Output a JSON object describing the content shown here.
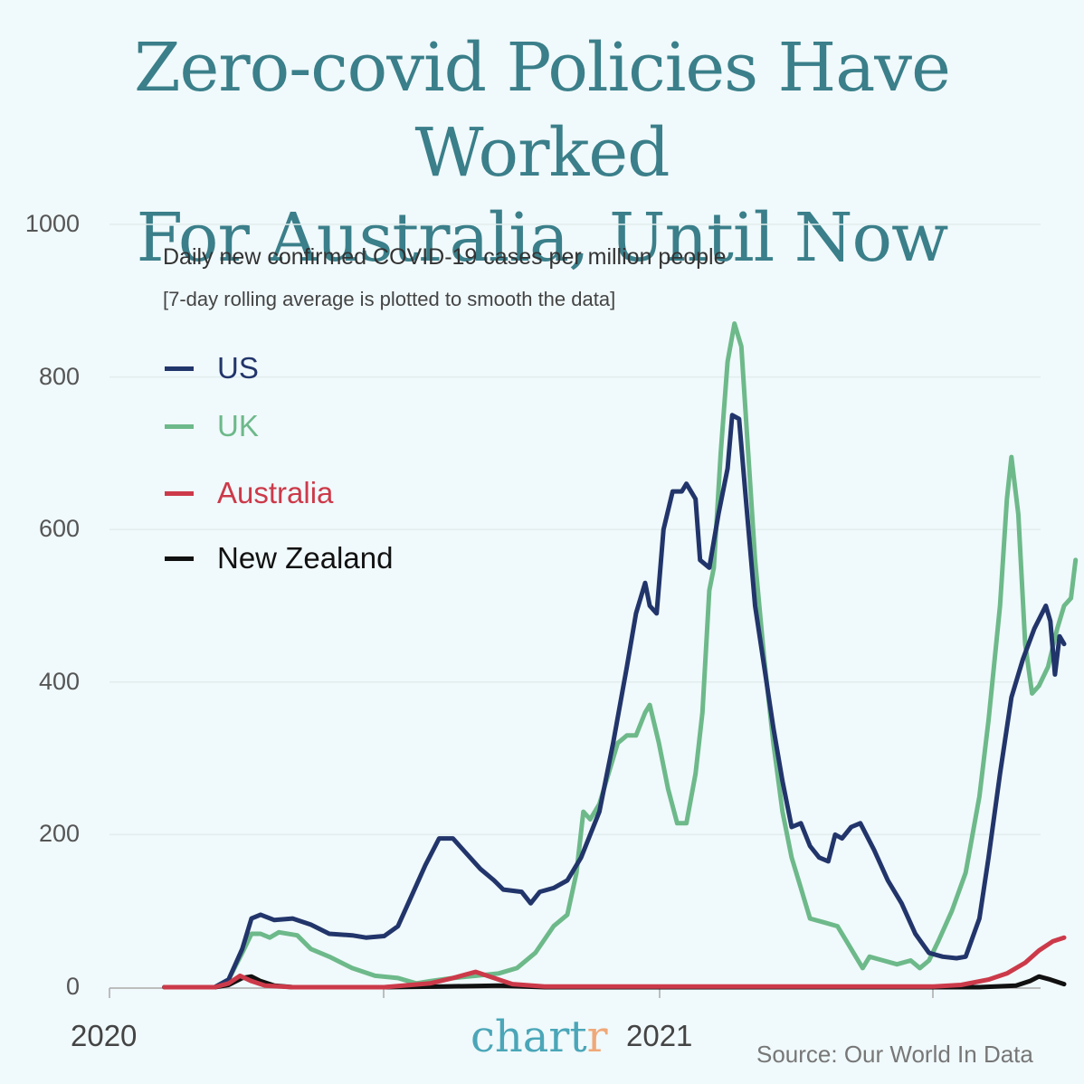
{
  "title": {
    "line1": "Zero-covid Policies Have Worked",
    "line2": "For Australia, Until Now"
  },
  "subtitle": "Daily new confirmed COVID-19 cases per million people",
  "note": "[7-day rolling average is plotted to smooth the data]",
  "brand": {
    "main": "chart",
    "accent": "r"
  },
  "source": "Source: Our World In Data",
  "colors": {
    "background": "#f0f9fb",
    "title": "#3a7f8a",
    "US": "#22356b",
    "UK": "#6db98a",
    "Australia": "#cc3a4a",
    "New Zealand": "#111111"
  },
  "legend": [
    {
      "label": "US",
      "color": "#22356b"
    },
    {
      "label": "UK",
      "color": "#6db98a"
    },
    {
      "label": "Australia",
      "color": "#cc3a4a"
    },
    {
      "label": "New Zealand",
      "color": "#111111"
    }
  ],
  "chart_data": {
    "type": "line",
    "title": "Daily new confirmed COVID-19 cases per million people",
    "subtitle": "[7-day rolling average is plotted to smooth the data]",
    "xlabel": "",
    "ylabel": "",
    "x_unit": "months since Jan 2020",
    "x_tick_labels": [
      "2020",
      "2021"
    ],
    "y_ticks": [
      0,
      200,
      400,
      600,
      800,
      1000
    ],
    "ylim": [
      0,
      1000
    ],
    "grid": true,
    "legend_position": "upper-left",
    "series": [
      {
        "name": "US",
        "color": "#22356b",
        "points": [
          [
            1.2,
            0
          ],
          [
            2.3,
            0
          ],
          [
            2.6,
            10
          ],
          [
            2.9,
            50
          ],
          [
            3.1,
            90
          ],
          [
            3.3,
            95
          ],
          [
            3.6,
            88
          ],
          [
            4.0,
            90
          ],
          [
            4.4,
            82
          ],
          [
            4.8,
            70
          ],
          [
            5.3,
            68
          ],
          [
            5.6,
            65
          ],
          [
            6.0,
            67
          ],
          [
            6.3,
            80
          ],
          [
            6.6,
            120
          ],
          [
            6.9,
            160
          ],
          [
            7.2,
            195
          ],
          [
            7.5,
            195
          ],
          [
            7.8,
            175
          ],
          [
            8.1,
            155
          ],
          [
            8.4,
            140
          ],
          [
            8.6,
            128
          ],
          [
            9.0,
            125
          ],
          [
            9.2,
            110
          ],
          [
            9.4,
            125
          ],
          [
            9.7,
            130
          ],
          [
            10.0,
            140
          ],
          [
            10.3,
            170
          ],
          [
            10.7,
            230
          ],
          [
            11.0,
            320
          ],
          [
            11.3,
            420
          ],
          [
            11.5,
            490
          ],
          [
            11.7,
            530
          ],
          [
            11.8,
            500
          ],
          [
            11.95,
            490
          ],
          [
            12.1,
            600
          ],
          [
            12.3,
            650
          ],
          [
            12.5,
            650
          ],
          [
            12.6,
            660
          ],
          [
            12.8,
            640
          ],
          [
            12.9,
            560
          ],
          [
            13.1,
            550
          ],
          [
            13.3,
            620
          ],
          [
            13.5,
            680
          ],
          [
            13.6,
            750
          ],
          [
            13.75,
            745
          ],
          [
            13.9,
            640
          ],
          [
            14.1,
            500
          ],
          [
            14.3,
            420
          ],
          [
            14.5,
            340
          ],
          [
            14.7,
            270
          ],
          [
            14.9,
            210
          ],
          [
            15.1,
            215
          ],
          [
            15.3,
            185
          ],
          [
            15.5,
            170
          ],
          [
            15.7,
            165
          ],
          [
            15.85,
            200
          ],
          [
            16.0,
            195
          ],
          [
            16.2,
            210
          ],
          [
            16.4,
            215
          ],
          [
            16.7,
            180
          ],
          [
            17.0,
            140
          ],
          [
            17.3,
            110
          ],
          [
            17.6,
            70
          ],
          [
            17.9,
            45
          ],
          [
            18.2,
            40
          ],
          [
            18.5,
            38
          ],
          [
            18.7,
            40
          ],
          [
            19.0,
            90
          ],
          [
            19.2,
            170
          ],
          [
            19.45,
            280
          ],
          [
            19.7,
            380
          ],
          [
            19.95,
            430
          ],
          [
            20.2,
            470
          ],
          [
            20.45,
            500
          ],
          [
            20.55,
            480
          ],
          [
            20.65,
            410
          ],
          [
            20.75,
            460
          ],
          [
            20.85,
            450
          ]
        ]
      },
      {
        "name": "UK",
        "color": "#6db98a",
        "points": [
          [
            1.2,
            0
          ],
          [
            2.3,
            0
          ],
          [
            2.6,
            10
          ],
          [
            2.9,
            45
          ],
          [
            3.1,
            70
          ],
          [
            3.3,
            70
          ],
          [
            3.5,
            65
          ],
          [
            3.7,
            72
          ],
          [
            4.1,
            68
          ],
          [
            4.4,
            50
          ],
          [
            4.8,
            40
          ],
          [
            5.3,
            25
          ],
          [
            5.8,
            15
          ],
          [
            6.3,
            12
          ],
          [
            6.7,
            5
          ],
          [
            7.0,
            8
          ],
          [
            7.5,
            12
          ],
          [
            8.0,
            15
          ],
          [
            8.5,
            18
          ],
          [
            8.9,
            25
          ],
          [
            9.3,
            45
          ],
          [
            9.7,
            80
          ],
          [
            10.0,
            95
          ],
          [
            10.2,
            150
          ],
          [
            10.35,
            230
          ],
          [
            10.5,
            220
          ],
          [
            10.7,
            240
          ],
          [
            10.9,
            280
          ],
          [
            11.1,
            320
          ],
          [
            11.3,
            330
          ],
          [
            11.5,
            330
          ],
          [
            11.7,
            360
          ],
          [
            11.8,
            370
          ],
          [
            12.0,
            320
          ],
          [
            12.2,
            260
          ],
          [
            12.4,
            215
          ],
          [
            12.6,
            215
          ],
          [
            12.8,
            280
          ],
          [
            12.95,
            360
          ],
          [
            13.1,
            520
          ],
          [
            13.2,
            550
          ],
          [
            13.35,
            700
          ],
          [
            13.5,
            820
          ],
          [
            13.65,
            870
          ],
          [
            13.8,
            840
          ],
          [
            13.95,
            700
          ],
          [
            14.1,
            560
          ],
          [
            14.3,
            430
          ],
          [
            14.5,
            320
          ],
          [
            14.7,
            230
          ],
          [
            14.9,
            170
          ],
          [
            15.1,
            130
          ],
          [
            15.3,
            90
          ],
          [
            15.6,
            85
          ],
          [
            15.9,
            80
          ],
          [
            16.1,
            60
          ],
          [
            16.3,
            40
          ],
          [
            16.45,
            25
          ],
          [
            16.6,
            40
          ],
          [
            16.9,
            35
          ],
          [
            17.2,
            30
          ],
          [
            17.5,
            35
          ],
          [
            17.7,
            25
          ],
          [
            17.9,
            35
          ],
          [
            18.1,
            60
          ],
          [
            18.4,
            100
          ],
          [
            18.7,
            150
          ],
          [
            19.0,
            250
          ],
          [
            19.2,
            350
          ],
          [
            19.45,
            500
          ],
          [
            19.6,
            640
          ],
          [
            19.7,
            695
          ],
          [
            19.85,
            620
          ],
          [
            20.0,
            450
          ],
          [
            20.15,
            385
          ],
          [
            20.3,
            395
          ],
          [
            20.5,
            420
          ],
          [
            20.7,
            470
          ],
          [
            20.85,
            500
          ],
          [
            21.0,
            510
          ],
          [
            21.1,
            560
          ]
        ]
      },
      {
        "name": "Australia",
        "color": "#cc3a4a",
        "points": [
          [
            1.2,
            0
          ],
          [
            2.3,
            0
          ],
          [
            2.6,
            5
          ],
          [
            2.85,
            15
          ],
          [
            3.1,
            8
          ],
          [
            3.4,
            2
          ],
          [
            4.0,
            0
          ],
          [
            6.0,
            0
          ],
          [
            7.0,
            5
          ],
          [
            7.5,
            12
          ],
          [
            8.0,
            20
          ],
          [
            8.4,
            12
          ],
          [
            8.8,
            4
          ],
          [
            9.5,
            1
          ],
          [
            12,
            1
          ],
          [
            15,
            1
          ],
          [
            18,
            1
          ],
          [
            18.6,
            3
          ],
          [
            19.2,
            10
          ],
          [
            19.6,
            18
          ],
          [
            20.0,
            32
          ],
          [
            20.3,
            48
          ],
          [
            20.6,
            60
          ],
          [
            20.85,
            65
          ]
        ]
      },
      {
        "name": "New Zealand",
        "color": "#111111",
        "points": [
          [
            1.2,
            0
          ],
          [
            2.3,
            0
          ],
          [
            2.6,
            3
          ],
          [
            2.9,
            12
          ],
          [
            3.1,
            14
          ],
          [
            3.3,
            8
          ],
          [
            3.6,
            2
          ],
          [
            4.0,
            0
          ],
          [
            6.0,
            0
          ],
          [
            7.3,
            1
          ],
          [
            8.5,
            2
          ],
          [
            9.5,
            0
          ],
          [
            12,
            0
          ],
          [
            19,
            0
          ],
          [
            19.8,
            2
          ],
          [
            20.1,
            8
          ],
          [
            20.3,
            14
          ],
          [
            20.55,
            10
          ],
          [
            20.85,
            4
          ]
        ]
      }
    ]
  }
}
